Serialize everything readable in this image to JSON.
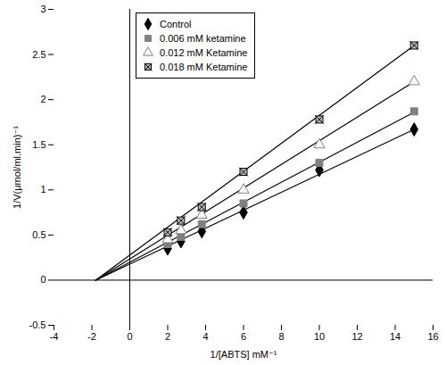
{
  "chart_data": {
    "type": "scatter",
    "xlabel": "1/[ABTS] mM⁻¹",
    "ylabel": "1/V(μmol/ml.min)⁻¹",
    "x": [
      2,
      2.7,
      3.8,
      6,
      10,
      15
    ],
    "series": [
      {
        "name": "Control",
        "color": "#000000",
        "marker": "diamond",
        "values": [
          0.35,
          0.43,
          0.54,
          0.75,
          1.22,
          1.67
        ],
        "trend": {
          "x": [
            -1.8,
            15
          ],
          "values": [
            0,
            1.67
          ]
        }
      },
      {
        "name": "0.006 mM ketamine",
        "color": "#808080",
        "marker": "square",
        "values": [
          0.4,
          0.48,
          0.62,
          0.85,
          1.3,
          1.87
        ],
        "trend": {
          "x": [
            -1.8,
            15
          ],
          "values": [
            0,
            1.86
          ]
        }
      },
      {
        "name": "0.012 mM Ketamine",
        "color": "#808080",
        "marker": "triangle-open",
        "values": [
          0.45,
          0.55,
          0.72,
          1.0,
          1.5,
          2.2
        ],
        "trend": {
          "x": [
            -1.8,
            15
          ],
          "values": [
            0,
            2.2
          ]
        }
      },
      {
        "name": "0.018 mM Ketamine",
        "color": "#000000",
        "marker": "square-x",
        "values": [
          0.53,
          0.66,
          0.81,
          1.2,
          1.78,
          2.6
        ],
        "trend": {
          "x": [
            -1.8,
            15
          ],
          "values": [
            0,
            2.6
          ]
        }
      }
    ],
    "xlim": [
      -4,
      16
    ],
    "xticks": [
      -4,
      -2,
      0,
      2,
      4,
      6,
      8,
      10,
      12,
      14,
      16
    ],
    "ylim": [
      -0.5,
      3
    ],
    "yticks": [
      -0.5,
      0,
      0.5,
      1,
      1.5,
      2,
      2.5,
      3
    ],
    "legend": "top-left"
  }
}
